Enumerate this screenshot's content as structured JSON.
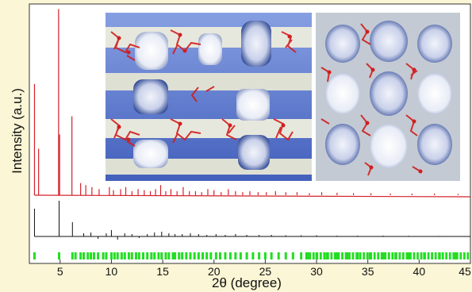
{
  "chart_data": {
    "type": "line",
    "title": "",
    "xlabel": "2θ (degree)",
    "ylabel": "Intensity (a.u.)",
    "xlim": [
      2,
      45
    ],
    "xticks": [
      5,
      10,
      15,
      20,
      25,
      30,
      35,
      40,
      45
    ],
    "grid": false,
    "legend": "none",
    "series": [
      {
        "color": "#d4202a",
        "x": [
          2.5,
          2.9,
          4.85,
          4.95,
          6.15,
          7.0,
          7.5,
          8.1,
          8.8,
          9.8,
          10.2,
          10.9,
          11.4,
          12.0,
          12.6,
          13.2,
          13.8,
          14.3,
          14.8,
          15.3,
          15.8,
          16.4,
          17.0,
          17.6,
          18.2,
          18.8,
          19.4,
          20.0,
          20.7,
          21.4,
          22.1,
          22.8,
          23.5,
          24.3,
          25.1,
          26.0,
          27.0,
          28.1,
          29.3,
          30.5,
          32.0,
          33.6,
          35.3,
          37.2,
          39.3,
          41.5,
          43.8
        ],
        "y": [
          55,
          23,
          92,
          30,
          39,
          6,
          5,
          4,
          3,
          4,
          2.5,
          3,
          4,
          2,
          3,
          2.5,
          2,
          3,
          5,
          2,
          3,
          2,
          4,
          2,
          2,
          1.5,
          3,
          2.5,
          1.5,
          3,
          2,
          1.5,
          2,
          1.5,
          1.5,
          2,
          1.5,
          1.5,
          1,
          1.5,
          1.2,
          1,
          1,
          0.8,
          0.8,
          0.8,
          0.6
        ]
      },
      {
        "color": "#111111",
        "x": [
          2.5,
          4.9,
          6.2,
          7.3,
          8.0,
          8.7,
          9.5,
          10.0,
          10.6,
          11.3,
          12.0,
          12.7,
          13.5,
          14.2,
          14.9,
          15.6,
          16.2,
          16.9,
          17.7,
          18.5,
          19.3,
          20.2,
          21.1,
          22.1,
          23.2,
          24.4,
          25.6,
          27.0,
          28.5,
          30.0,
          32.0,
          34.0,
          36.5,
          39.0,
          42.0
        ],
        "y": [
          35,
          45,
          18,
          4,
          5,
          -3,
          4,
          8,
          -4,
          4,
          3,
          -2,
          3,
          5,
          6,
          4,
          3,
          3,
          4,
          3,
          2,
          3,
          2,
          3,
          2,
          2,
          2,
          1.5,
          1.5,
          1.5,
          1,
          1,
          1,
          0.8,
          0.6
        ]
      }
    ],
    "reference_positions": {
      "color": "#22dd22",
      "x": [
        2.5,
        4.9,
        6.2,
        6.5,
        7.0,
        7.3,
        7.7,
        8.0,
        8.3,
        8.7,
        9.2,
        9.5,
        10.0,
        10.3,
        10.6,
        11.0,
        11.3,
        11.7,
        12.0,
        12.4,
        12.7,
        13.1,
        13.5,
        13.9,
        14.2,
        14.6,
        14.9,
        15.3,
        15.6,
        16.0,
        16.2,
        16.6,
        16.9,
        17.3,
        17.7,
        18.1,
        18.5,
        18.9,
        19.3,
        19.7,
        20.2,
        20.6,
        21.1,
        21.6,
        22.1,
        22.6,
        23.2,
        23.8,
        24.4,
        25.0,
        25.6,
        26.3,
        27.0,
        27.7,
        28.5,
        29.2,
        30.0,
        31.0,
        32.0,
        33.0,
        34.0,
        35.2,
        36.5,
        37.7,
        39.0,
        40.5,
        42.0,
        43.5
      ]
    }
  }
}
